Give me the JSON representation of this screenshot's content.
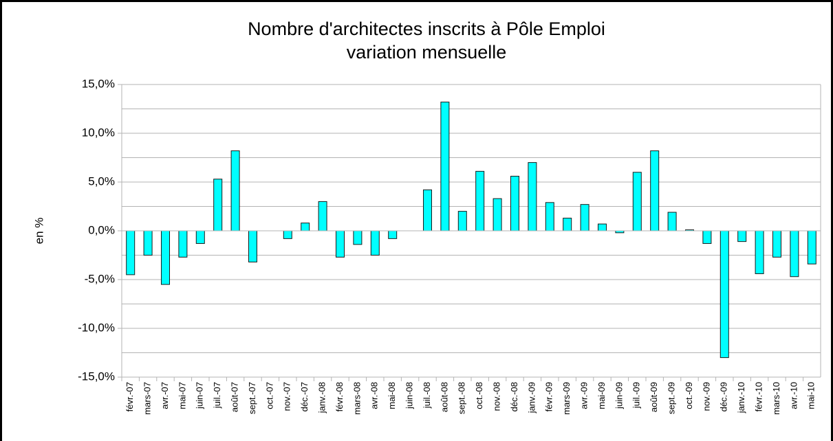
{
  "chart_data": {
    "type": "bar",
    "title": "Nombre d'architectes inscrits à Pôle Emploi",
    "subtitle": "variation mensuelle",
    "y_label": "en %",
    "categories": [
      "févr.-07",
      "mars-07",
      "avr.-07",
      "mai-07",
      "juin-07",
      "juil.-07",
      "août-07",
      "sept.-07",
      "oct.-07",
      "nov.-07",
      "déc.-07",
      "janv.-08",
      "févr.-08",
      "mars-08",
      "avr.-08",
      "mai-08",
      "juin-08",
      "juil.-08",
      "août-08",
      "sept.-08",
      "oct.-08",
      "nov.-08",
      "déc.-08",
      "janv.-09",
      "févr.-09",
      "mars-09",
      "avr.-09",
      "mai-09",
      "juin-09",
      "juil.-09",
      "août-09",
      "sept.-09",
      "oct.-09",
      "nov.-09",
      "déc.-09",
      "janv.-10",
      "févr.-10",
      "mars-10",
      "avr.-10",
      "mai-10"
    ],
    "values": [
      -4.5,
      -2.5,
      -5.5,
      -2.7,
      -1.3,
      5.3,
      8.2,
      -3.2,
      0,
      -0.8,
      0.8,
      3.0,
      -2.7,
      -1.4,
      -2.5,
      -0.8,
      0,
      4.2,
      13.2,
      2.0,
      6.1,
      3.3,
      5.6,
      7.0,
      2.9,
      1.3,
      2.7,
      0.7,
      -0.2,
      6.0,
      8.2,
      1.9,
      0.1,
      -1.3,
      -13.0,
      -1.1,
      -4.4,
      -2.7,
      -4.7,
      -3.4
    ],
    "color": "#00ffff",
    "ylim": [
      -15,
      15
    ],
    "yticks": [
      {
        "value": -15,
        "label": "-15,0%"
      },
      {
        "value": -10,
        "label": "-10,0%"
      },
      {
        "value": -5,
        "label": "-5,0%"
      },
      {
        "value": 0,
        "label": "0,0%"
      },
      {
        "value": 5,
        "label": "5,0%"
      },
      {
        "value": 10,
        "label": "10,0%"
      },
      {
        "value": 15,
        "label": "15,0%"
      }
    ],
    "minor_gridlines": [
      -12.5,
      -7.5,
      -2.5,
      2.5,
      7.5,
      12.5
    ],
    "grid": true
  }
}
